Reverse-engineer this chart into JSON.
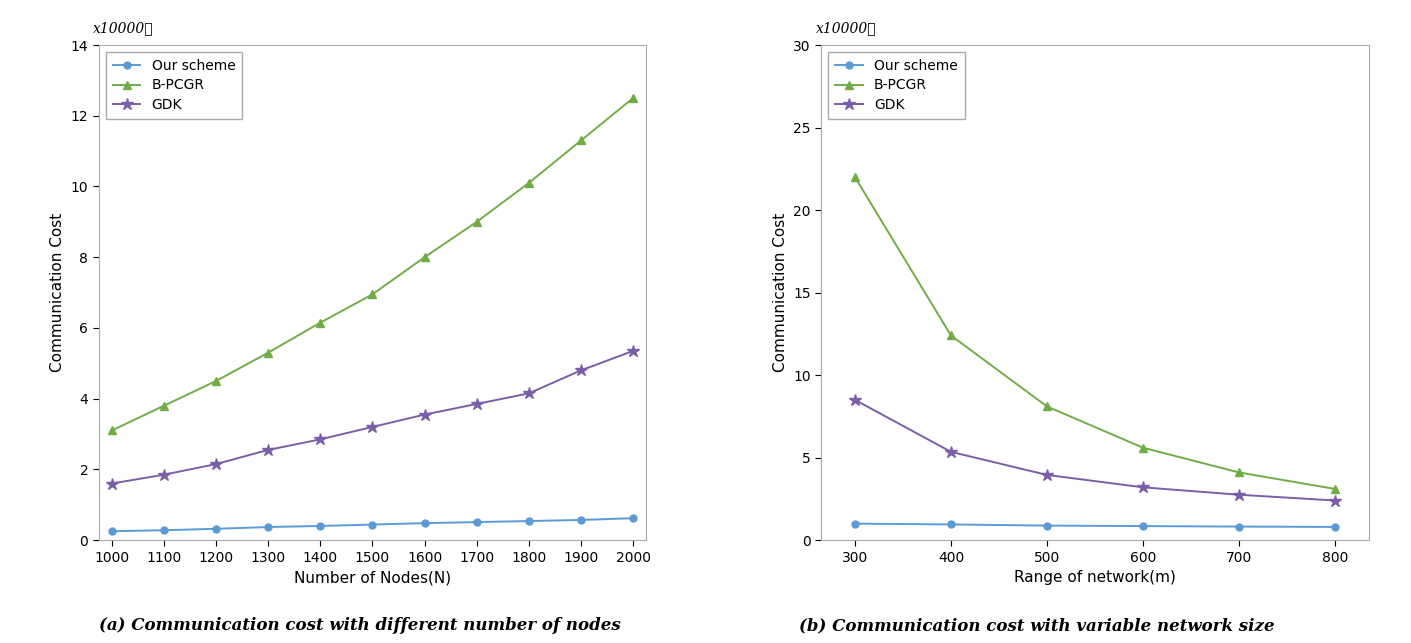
{
  "left_chart": {
    "x": [
      1000,
      1100,
      1200,
      1300,
      1400,
      1500,
      1600,
      1700,
      1800,
      1900,
      2000
    ],
    "our_scheme": [
      0.25,
      0.28,
      0.32,
      0.37,
      0.4,
      0.44,
      0.48,
      0.51,
      0.54,
      0.57,
      0.62
    ],
    "bpcgr": [
      3.1,
      3.8,
      4.5,
      5.3,
      6.15,
      6.95,
      8.0,
      9.0,
      10.1,
      11.3,
      12.5
    ],
    "gdk": [
      1.6,
      1.85,
      2.15,
      2.55,
      2.85,
      3.2,
      3.55,
      3.85,
      4.15,
      4.8,
      5.35
    ],
    "xlabel": "Number of Nodes(N)",
    "ylabel": "Communication Cost",
    "ylim": [
      0,
      14
    ],
    "yticks": [
      0,
      2,
      4,
      6,
      8,
      10,
      12,
      14
    ],
    "xticks": [
      1000,
      1100,
      1200,
      1300,
      1400,
      1500,
      1600,
      1700,
      1800,
      1900,
      2000
    ],
    "ylabel_offset": "x10000ℓ",
    "caption": "(a) Communication cost with different number of nodes"
  },
  "right_chart": {
    "x": [
      300,
      400,
      500,
      600,
      700,
      800
    ],
    "our_scheme": [
      1.0,
      0.95,
      0.88,
      0.85,
      0.82,
      0.8
    ],
    "bpcgr": [
      22.0,
      12.4,
      8.1,
      5.6,
      4.1,
      3.1
    ],
    "gdk": [
      8.5,
      5.35,
      3.95,
      3.2,
      2.75,
      2.4
    ],
    "xlabel": "Range of network(m)",
    "ylabel": "Communication Cost",
    "ylim": [
      0,
      30
    ],
    "yticks": [
      0,
      5,
      10,
      15,
      20,
      25,
      30
    ],
    "xticks": [
      300,
      400,
      500,
      600,
      700,
      800
    ],
    "ylabel_offset": "x10000ℓ",
    "caption": "(b) Communication cost with variable network size"
  },
  "our_scheme_color": "#5B9BD5",
  "bpcgr_color": "#70AD47",
  "gdk_color": "#7B5EA7",
  "our_scheme_label": "Our scheme",
  "bpcgr_label": "B-PCGR",
  "gdk_label": "GDK",
  "marker_our": "o",
  "marker_bpcgr": "^",
  "marker_gdk": "*",
  "linewidth": 1.4,
  "markersize_our": 5,
  "markersize_bpcgr": 6,
  "markersize_gdk": 9,
  "background_color": "#ffffff",
  "font_size_tick": 10,
  "font_size_label": 11,
  "font_size_legend": 10,
  "font_size_caption": 12
}
